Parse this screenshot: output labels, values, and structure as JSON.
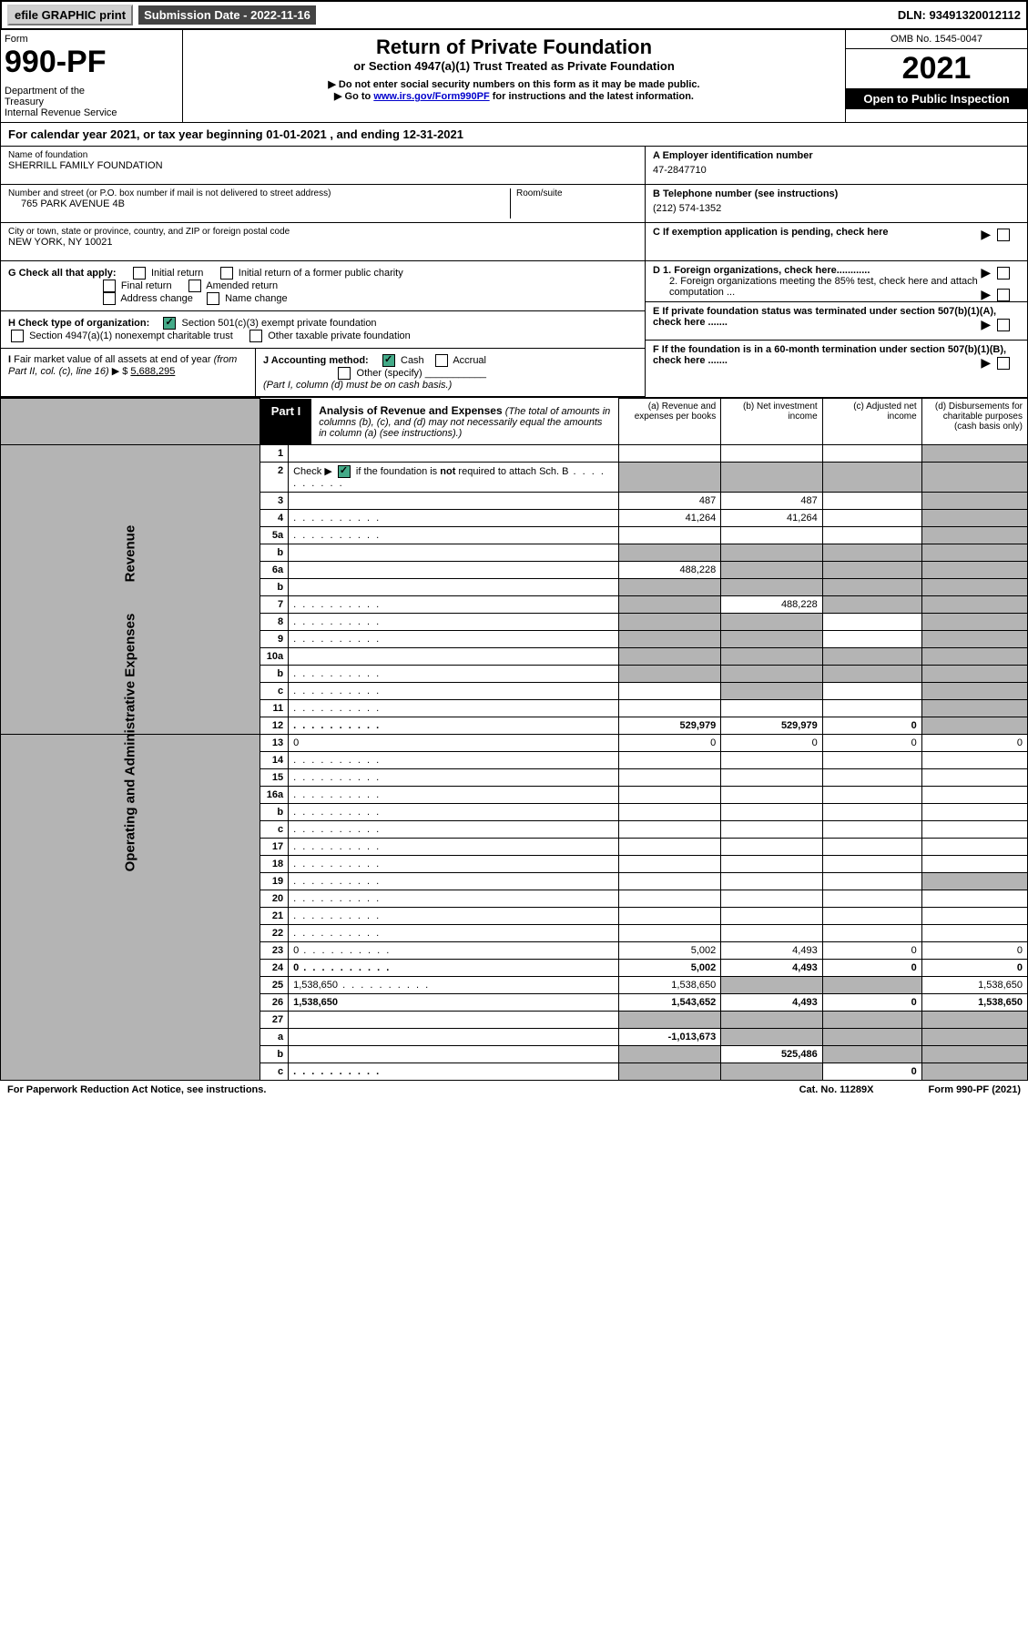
{
  "top": {
    "efile": "efile GRAPHIC print",
    "submission": "Submission Date - 2022-11-16",
    "dln": "DLN: 93491320012112"
  },
  "header": {
    "form_label": "Form",
    "form_number": "990-PF",
    "dept": "Department of the Treasury\nInternal Revenue Service",
    "title": "Return of Private Foundation",
    "subtitle": "or Section 4947(a)(1) Trust Treated as Private Foundation",
    "note1": "▶ Do not enter social security numbers on this form as it may be made public.",
    "note2_pre": "▶ Go to ",
    "note2_link": "www.irs.gov/Form990PF",
    "note2_post": " for instructions and the latest information.",
    "omb": "OMB No. 1545-0047",
    "year": "2021",
    "inspect": "Open to Public Inspection"
  },
  "cal_year": "For calendar year 2021, or tax year beginning 01-01-2021             , and ending 12-31-2021",
  "info": {
    "name_label": "Name of foundation",
    "name": "SHERRILL FAMILY FOUNDATION",
    "addr_label": "Number and street (or P.O. box number if mail is not delivered to street address)",
    "addr": "765 PARK AVENUE 4B",
    "room_label": "Room/suite",
    "city_label": "City or town, state or province, country, and ZIP or foreign postal code",
    "city": "NEW YORK, NY  10021",
    "a_label": "A Employer identification number",
    "a_val": "47-2847710",
    "b_label": "B Telephone number (see instructions)",
    "b_val": "(212) 574-1352",
    "c_label": "C If exemption application is pending, check here",
    "d1": "D 1. Foreign organizations, check here............",
    "d2": "2. Foreign organizations meeting the 85% test, check here and attach computation ...",
    "e": "E  If private foundation status was terminated under section 507(b)(1)(A), check here .......",
    "f": "F  If the foundation is in a 60-month termination under section 507(b)(1)(B), check here ......."
  },
  "g": {
    "label": "G Check all that apply:",
    "opts": [
      "Initial return",
      "Initial return of a former public charity",
      "Final return",
      "Amended return",
      "Address change",
      "Name change"
    ]
  },
  "h": {
    "label": "H Check type of organization:",
    "opt1": "Section 501(c)(3) exempt private foundation",
    "opt2": "Section 4947(a)(1) nonexempt charitable trust",
    "opt3": "Other taxable private foundation"
  },
  "i": {
    "label": "I Fair market value of all assets at end of year (from Part II, col. (c), line 16) ▶ $",
    "value": "5,688,295",
    "j_label": "J Accounting method:",
    "j_cash": "Cash",
    "j_accrual": "Accrual",
    "j_other": "Other (specify)",
    "j_note": "(Part I, column (d) must be on cash basis.)"
  },
  "part1": {
    "label": "Part I",
    "title": "Analysis of Revenue and Expenses",
    "desc": "(The total of amounts in columns (b), (c), and (d) may not necessarily equal the amounts in column (a) (see instructions).)",
    "col_a": "(a)   Revenue and expenses per books",
    "col_b": "(b)   Net investment income",
    "col_c": "(c)   Adjusted net income",
    "col_d": "(d)   Disbursements for charitable purposes (cash basis only)"
  },
  "side_labels": {
    "revenue": "Revenue",
    "expenses": "Operating and Administrative Expenses"
  },
  "rows": [
    {
      "n": "1",
      "d": "",
      "a": "",
      "b": "",
      "c": "",
      "shade": [
        "d"
      ]
    },
    {
      "n": "2",
      "d": "",
      "dots": true,
      "a": "",
      "b": "",
      "c": "",
      "shade": [
        "a",
        "b",
        "c",
        "d"
      ]
    },
    {
      "n": "3",
      "d": "",
      "a": "487",
      "b": "487",
      "c": "",
      "shade": [
        "d"
      ]
    },
    {
      "n": "4",
      "d": "",
      "dots": true,
      "a": "41,264",
      "b": "41,264",
      "c": "",
      "shade": [
        "d"
      ]
    },
    {
      "n": "5a",
      "d": "",
      "dots": true,
      "a": "",
      "b": "",
      "c": "",
      "shade": [
        "d"
      ]
    },
    {
      "n": "b",
      "d": "",
      "a": "",
      "b": "",
      "c": "",
      "shade": [
        "a",
        "b",
        "c",
        "d"
      ]
    },
    {
      "n": "6a",
      "d": "",
      "a": "488,228",
      "b": "",
      "c": "",
      "shade": [
        "b",
        "c",
        "d"
      ]
    },
    {
      "n": "b",
      "d": "",
      "a": "",
      "b": "",
      "c": "",
      "shade": [
        "a",
        "b",
        "c",
        "d"
      ]
    },
    {
      "n": "7",
      "d": "",
      "dots": true,
      "a": "",
      "b": "488,228",
      "c": "",
      "shade": [
        "a",
        "c",
        "d"
      ]
    },
    {
      "n": "8",
      "d": "",
      "dots": true,
      "a": "",
      "b": "",
      "c": "",
      "shade": [
        "a",
        "b",
        "d"
      ]
    },
    {
      "n": "9",
      "d": "",
      "dots": true,
      "a": "",
      "b": "",
      "c": "",
      "shade": [
        "a",
        "b",
        "d"
      ]
    },
    {
      "n": "10a",
      "d": "",
      "a": "",
      "b": "",
      "c": "",
      "shade": [
        "a",
        "b",
        "c",
        "d"
      ]
    },
    {
      "n": "b",
      "d": "",
      "dots": true,
      "a": "",
      "b": "",
      "c": "",
      "shade": [
        "a",
        "b",
        "c",
        "d"
      ]
    },
    {
      "n": "c",
      "d": "",
      "dots": true,
      "a": "",
      "b": "",
      "c": "",
      "shade": [
        "b",
        "d"
      ]
    },
    {
      "n": "11",
      "d": "",
      "dots": true,
      "a": "",
      "b": "",
      "c": "",
      "shade": [
        "d"
      ]
    },
    {
      "n": "12",
      "d": "",
      "dots": true,
      "bold": true,
      "a": "529,979",
      "b": "529,979",
      "c": "0",
      "shade": [
        "d"
      ]
    },
    {
      "n": "13",
      "d": "0",
      "a": "0",
      "b": "0",
      "c": "0"
    },
    {
      "n": "14",
      "d": "",
      "dots": true,
      "a": "",
      "b": "",
      "c": ""
    },
    {
      "n": "15",
      "d": "",
      "dots": true,
      "a": "",
      "b": "",
      "c": ""
    },
    {
      "n": "16a",
      "d": "",
      "dots": true,
      "a": "",
      "b": "",
      "c": ""
    },
    {
      "n": "b",
      "d": "",
      "dots": true,
      "a": "",
      "b": "",
      "c": ""
    },
    {
      "n": "c",
      "d": "",
      "dots": true,
      "a": "",
      "b": "",
      "c": ""
    },
    {
      "n": "17",
      "d": "",
      "dots": true,
      "a": "",
      "b": "",
      "c": ""
    },
    {
      "n": "18",
      "d": "",
      "dots": true,
      "a": "",
      "b": "",
      "c": ""
    },
    {
      "n": "19",
      "d": "",
      "dots": true,
      "a": "",
      "b": "",
      "c": "",
      "shade": [
        "d"
      ]
    },
    {
      "n": "20",
      "d": "",
      "dots": true,
      "a": "",
      "b": "",
      "c": ""
    },
    {
      "n": "21",
      "d": "",
      "dots": true,
      "a": "",
      "b": "",
      "c": ""
    },
    {
      "n": "22",
      "d": "",
      "dots": true,
      "a": "",
      "b": "",
      "c": ""
    },
    {
      "n": "23",
      "d": "0",
      "dots": true,
      "a": "5,002",
      "b": "4,493",
      "c": "0"
    },
    {
      "n": "24",
      "d": "0",
      "dots": true,
      "bold": true,
      "a": "5,002",
      "b": "4,493",
      "c": "0"
    },
    {
      "n": "25",
      "d": "1,538,650",
      "dots": true,
      "a": "1,538,650",
      "b": "",
      "c": "",
      "shade": [
        "b",
        "c"
      ]
    },
    {
      "n": "26",
      "d": "1,538,650",
      "bold": true,
      "a": "1,543,652",
      "b": "4,493",
      "c": "0"
    },
    {
      "n": "27",
      "d": "",
      "a": "",
      "b": "",
      "c": "",
      "shade": [
        "a",
        "b",
        "c",
        "d"
      ]
    },
    {
      "n": "a",
      "d": "",
      "bold": true,
      "a": "-1,013,673",
      "b": "",
      "c": "",
      "shade": [
        "b",
        "c",
        "d"
      ]
    },
    {
      "n": "b",
      "d": "",
      "bold": true,
      "a": "",
      "b": "525,486",
      "c": "",
      "shade": [
        "a",
        "c",
        "d"
      ]
    },
    {
      "n": "c",
      "d": "",
      "dots": true,
      "bold": true,
      "a": "",
      "b": "",
      "c": "0",
      "shade": [
        "a",
        "b",
        "d"
      ]
    }
  ],
  "footer": {
    "left": "For Paperwork Reduction Act Notice, see instructions.",
    "mid": "Cat. No. 11289X",
    "right": "Form 990-PF (2021)"
  },
  "colors": {
    "shaded": "#b4b4b4",
    "link": "#0000cc",
    "check": "#44aa88"
  }
}
